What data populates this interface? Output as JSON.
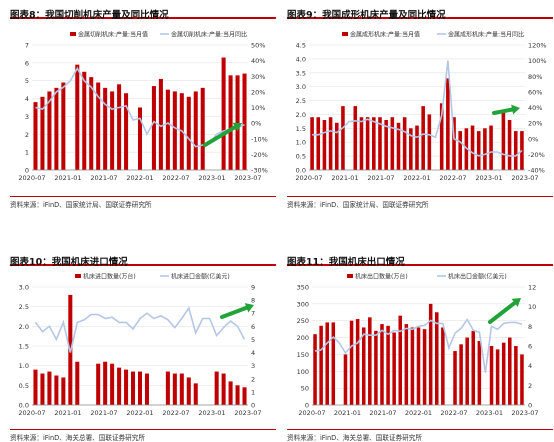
{
  "chart_data": [
    {
      "id": "c8",
      "type": "bar",
      "title": "图表8：我国切削机床产量及同比情况",
      "source": "资料来源：iFinD、国家统计局、国联证券研究所",
      "series": [
        {
          "name": "金属切削机床:产量:当月值",
          "kind": "bar",
          "axis": "left",
          "values": [
            3.8,
            4.1,
            4.4,
            4.6,
            4.9,
            null,
            5.9,
            5.5,
            5.2,
            4.9,
            4.6,
            4.4,
            4.8,
            4.3,
            null,
            3.5,
            null,
            4.7,
            5.1,
            4.5,
            4.4,
            4.3,
            4.1,
            4.4,
            4.6,
            null,
            null,
            6.3,
            5.3,
            5.3,
            5.4
          ]
        },
        {
          "name": "金属切削机床:产量:当月同比",
          "kind": "line",
          "axis": "right",
          "values": [
            10,
            9,
            14,
            20,
            23,
            27,
            35,
            27,
            23,
            17,
            12,
            9,
            10,
            11,
            2,
            3,
            -7,
            1,
            -2,
            0,
            -3,
            -5,
            -10,
            -15,
            -14,
            -13,
            -7,
            -5,
            -4,
            -3,
            -1
          ]
        }
      ],
      "x_ticks": [
        "2020-07",
        "2021-01",
        "2021-07",
        "2022-01",
        "2022-07",
        "2023-01",
        "2023-07"
      ],
      "y_left": {
        "min": 0,
        "max": 7,
        "ticks": [
          "0",
          "1",
          "2",
          "3",
          "4",
          "5",
          "6",
          "7"
        ]
      },
      "y_right": {
        "min": -30,
        "max": 50,
        "ticks": [
          "-30%",
          "-20%",
          "-10%",
          "0%",
          "10%",
          "20%",
          "30%",
          "40%",
          "50%"
        ]
      }
    },
    {
      "id": "c9",
      "type": "bar",
      "title": "图表9：我国成形机床产量及同比情况",
      "source": "资料来源：iFinD、国家统计局、国联证券研究所",
      "series": [
        {
          "name": "金属成形机床:产量:当月值",
          "kind": "bar",
          "axis": "left",
          "values": [
            1.9,
            1.9,
            1.8,
            1.9,
            1.7,
            2.3,
            null,
            2.3,
            1.9,
            1.9,
            1.9,
            1.9,
            1.8,
            1.9,
            1.7,
            1.9,
            1.5,
            1.6,
            2.3,
            2.0,
            null,
            2.4,
            3.3,
            1.9,
            1.4,
            1.5,
            1.6,
            1.4,
            1.5,
            1.6,
            null,
            2.1,
            1.8,
            1.4,
            1.4
          ]
        },
        {
          "name": "金属成形机床:产量:当月同比",
          "kind": "line",
          "axis": "right",
          "values": [
            5,
            5,
            8,
            10,
            8,
            14,
            22,
            23,
            22,
            25,
            22,
            19,
            16,
            14,
            12,
            9,
            4,
            2,
            6,
            5,
            2,
            30,
            100,
            0,
            -4,
            -12,
            -18,
            -22,
            -20,
            -17,
            -17,
            -20,
            -22,
            -22,
            -15
          ]
        }
      ],
      "x_ticks": [
        "2020-07",
        "2021-01",
        "2021-07",
        "2022-01",
        "2022-07",
        "2023-01",
        "2023-07"
      ],
      "y_left": {
        "min": 0,
        "max": 4.5,
        "ticks": [
          "0.0",
          "0.5",
          "1.0",
          "1.5",
          "2.0",
          "2.5",
          "3.0",
          "3.5",
          "4.0",
          "4.5"
        ]
      },
      "y_right": {
        "min": -40,
        "max": 120,
        "ticks": [
          "-40%",
          "-20%",
          "0%",
          "20%",
          "40%",
          "60%",
          "80%",
          "100%",
          "120%"
        ]
      }
    },
    {
      "id": "c10",
      "type": "bar",
      "title": "图表10：我国机床进口情况",
      "source": "资料来源：iFinD、海关总署、国联证券研究所",
      "series": [
        {
          "name": "机床进口数量(万台)",
          "kind": "bar",
          "axis": "left",
          "values": [
            0.9,
            0.8,
            0.85,
            0.75,
            0.7,
            2.8,
            1.1,
            null,
            null,
            1.05,
            1.1,
            1.05,
            0.95,
            0.9,
            0.85,
            0.85,
            0.8,
            null,
            null,
            0.85,
            0.8,
            0.8,
            0.7,
            0.55,
            null,
            null,
            0.85,
            0.8,
            0.6,
            0.5,
            0.45
          ]
        },
        {
          "name": "机床进口金额(亿美元)",
          "kind": "line",
          "axis": "right",
          "values": [
            6.3,
            5.6,
            6.0,
            5.0,
            6.3,
            4.0,
            6.3,
            6.5,
            6.9,
            6.9,
            6.6,
            6.7,
            6.3,
            6.3,
            5.8,
            6.6,
            7.0,
            6.6,
            6.8,
            6.5,
            5.9,
            6.6,
            7.4,
            5.5,
            6.6,
            6.6,
            5.3,
            5.9,
            6.4,
            6.0,
            5.0
          ]
        }
      ],
      "x_ticks": [
        "2020-07",
        "2021-01",
        "2021-07",
        "2022-01",
        "2022-07",
        "2023-01",
        "2023-07"
      ],
      "y_left": {
        "min": 0,
        "max": 3.0,
        "ticks": [
          "0.0",
          "0.5",
          "1.0",
          "1.5",
          "2.0",
          "2.5",
          "3.0"
        ]
      },
      "y_right": {
        "min": 0,
        "max": 9,
        "ticks": [
          "0",
          "1",
          "2",
          "3",
          "4",
          "5",
          "6",
          "7",
          "8",
          "9"
        ]
      }
    },
    {
      "id": "c11",
      "type": "bar",
      "title": "图表11：我国机床出口情况",
      "source": "资料来源：iFinD、海关总署、国联证券研究所",
      "series": [
        {
          "name": "机床出口数量(万台)",
          "kind": "bar",
          "axis": "left",
          "values": [
            210,
            235,
            245,
            245,
            null,
            150,
            250,
            255,
            230,
            260,
            220,
            240,
            235,
            215,
            265,
            240,
            230,
            230,
            225,
            300,
            275,
            230,
            null,
            160,
            180,
            200,
            220,
            190,
            null,
            175,
            165,
            185,
            200,
            175,
            150
          ]
        },
        {
          "name": "机床出口金额(亿美元)",
          "kind": "line",
          "axis": "right",
          "values": [
            5.5,
            5.6,
            6.3,
            6.9,
            6.3,
            5.3,
            6.0,
            6.3,
            7.2,
            7.1,
            7.1,
            7.6,
            7.2,
            7.6,
            7.5,
            7.8,
            7.7,
            8.0,
            8.1,
            8.6,
            8.3,
            8.3,
            5.8,
            7.3,
            7.8,
            8.7,
            7.6,
            7.4,
            3.3,
            8.0,
            7.7,
            8.3,
            8.4,
            8.4,
            8.2
          ]
        }
      ],
      "x_ticks": [
        "2020-07",
        "2021-01",
        "2021-07",
        "2022-01",
        "2022-07",
        "2023-01",
        "2023-07"
      ],
      "y_left": {
        "min": 0,
        "max": 350,
        "ticks": [
          "0",
          "50",
          "100",
          "150",
          "200",
          "250",
          "300",
          "350"
        ]
      },
      "y_right": {
        "min": 0,
        "max": 12,
        "ticks": [
          "0",
          "2",
          "4",
          "6",
          "8",
          "10",
          "12"
        ]
      }
    }
  ]
}
